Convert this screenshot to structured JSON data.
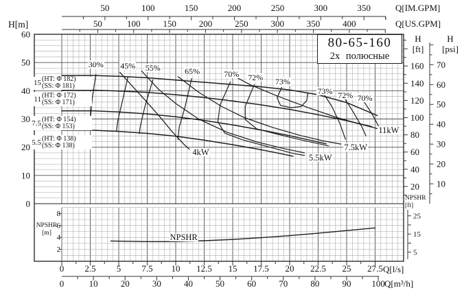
{
  "title_box": {
    "line1": "80-65-160",
    "line2": "2х полюсные"
  },
  "axes": {
    "top_im": {
      "unit": "Q[IM.GPM]",
      "ticks": [
        50,
        100,
        150,
        200,
        250,
        300,
        350
      ],
      "lps_per_unit": 0.0757682
    },
    "top_us": {
      "unit": "Q[US.GPM]",
      "ticks": [
        50,
        100,
        150,
        200,
        250,
        300,
        350,
        400
      ],
      "lps_per_unit": 0.0630902
    },
    "left_h_m": {
      "unit": "H[m]",
      "ticks": [
        0,
        10,
        20,
        30,
        40,
        50,
        60
      ]
    },
    "right_h_ft": {
      "title_line1": "H",
      "title_line2": "[ft]",
      "ticks": [
        20,
        40,
        60,
        80,
        100,
        120,
        140,
        160
      ],
      "m_per_unit": 0.3048
    },
    "right_h_psi": {
      "title_line1": "H",
      "title_line2": "[psi]",
      "ticks": [
        10,
        20,
        30,
        40,
        50,
        60,
        70
      ],
      "m_per_unit": 0.70325
    },
    "bottom_lps": {
      "unit": "Q[l/s]",
      "ticks": [
        0,
        2.5,
        5,
        7.5,
        10,
        12.5,
        15,
        17.5,
        20,
        22.5,
        25,
        27.5
      ]
    },
    "bottom_m3h": {
      "unit": "Q[m³/h]",
      "ticks": [
        0,
        10,
        20,
        30,
        40,
        50,
        60,
        70,
        80,
        90,
        100
      ],
      "lps_per_unit": 0.2777778
    },
    "npshr_left": {
      "title_line1": "NPSHR",
      "title_line2": "[m]",
      "ticks": [
        2,
        4,
        6,
        8
      ]
    },
    "npshr_right": {
      "title_line1": "NPSHR",
      "title_line2": "[ft]",
      "ticks": [
        5,
        15,
        25
      ],
      "m_per_unit": 0.3048
    }
  },
  "chart_data": {
    "type": "line",
    "xlabel": "Q [l/s]",
    "ylabel": "H [m]",
    "x_range_lps": [
      0,
      30
    ],
    "y_range_m": [
      0,
      60
    ],
    "npshr_range_m": [
      0,
      9
    ],
    "grid": "on",
    "head_curves": [
      {
        "label": "15",
        "ht": "(HT: Φ 182)",
        "ss": "(SS: Φ 181)",
        "points": [
          [
            0,
            45.4
          ],
          [
            2.8,
            45.4
          ],
          [
            5,
            45.1
          ],
          [
            7.5,
            44.6
          ],
          [
            10,
            43.8
          ],
          [
            12.5,
            43.0
          ],
          [
            15,
            42.2
          ],
          [
            17.5,
            41.4
          ],
          [
            20,
            40.3
          ],
          [
            22.5,
            38.6
          ],
          [
            25,
            35.8
          ],
          [
            27.7,
            31.2
          ]
        ]
      },
      {
        "label": "11",
        "ht": "(HT: Φ 172)",
        "ss": "(SS: Φ 171)",
        "points": [
          [
            0,
            40.2
          ],
          [
            2.8,
            40.2
          ],
          [
            5,
            39.9
          ],
          [
            7.5,
            39.4
          ],
          [
            10,
            38.6
          ],
          [
            12.5,
            37.6
          ],
          [
            15,
            36.4
          ],
          [
            17.5,
            35.0
          ],
          [
            20,
            33.4
          ],
          [
            22.5,
            31.5
          ],
          [
            25,
            29.4
          ],
          [
            27.2,
            27.3
          ]
        ]
      },
      {
        "label": "7.5",
        "ht": "(HT: Φ 154)",
        "ss": "(SS: Φ 153)",
        "points": [
          [
            0,
            32.9
          ],
          [
            2.8,
            32.9
          ],
          [
            5,
            32.5
          ],
          [
            7.5,
            31.8
          ],
          [
            10,
            30.8
          ],
          [
            12.5,
            29.5
          ],
          [
            15,
            27.9
          ],
          [
            17.5,
            26.1
          ],
          [
            20,
            24.1
          ],
          [
            22,
            22.3
          ],
          [
            23.2,
            21.2
          ]
        ]
      },
      {
        "label": "5.5",
        "ht": "(HT: Φ 138)",
        "ss": "(SS: Φ 138)",
        "points": [
          [
            0,
            26.0
          ],
          [
            2.8,
            26.0
          ],
          [
            5,
            25.6
          ],
          [
            7.5,
            24.9
          ],
          [
            10,
            23.9
          ],
          [
            12.5,
            22.5
          ],
          [
            15,
            20.9
          ],
          [
            17.5,
            19.1
          ],
          [
            19,
            17.9
          ],
          [
            20.3,
            16.8
          ]
        ]
      }
    ],
    "power_curves": [
      {
        "label": "4kW",
        "points": [
          [
            5.1,
            46.5
          ],
          [
            6.2,
            41.6
          ],
          [
            7.4,
            36.3
          ],
          [
            8.6,
            30.8
          ],
          [
            9.6,
            25.9
          ],
          [
            10.7,
            21.1
          ],
          [
            11.2,
            19.3
          ]
        ],
        "label_pos": [
          12.2,
          18.2
        ]
      },
      {
        "label": "5.5kW",
        "points": [
          [
            7.0,
            47.0
          ],
          [
            8.5,
            40.5
          ],
          [
            10,
            35.5
          ],
          [
            12,
            30.0
          ],
          [
            14.5,
            25.3
          ],
          [
            17,
            22.0
          ],
          [
            19.5,
            19.5
          ],
          [
            21.3,
            18.0
          ]
        ],
        "label_pos": [
          22.7,
          16.3
        ]
      },
      {
        "label": "7.5kW",
        "points": [
          [
            10.2,
            45.0
          ],
          [
            12,
            39.5
          ],
          [
            14,
            34.5
          ],
          [
            16,
            30.5
          ],
          [
            18.5,
            27.0
          ],
          [
            21,
            24.1
          ],
          [
            23,
            22.2
          ],
          [
            24.5,
            21.1
          ]
        ],
        "label_pos": [
          25.8,
          19.9
        ]
      },
      {
        "label": "11kW",
        "points": [
          [
            14.3,
            47.0
          ],
          [
            16.5,
            42.2
          ],
          [
            19,
            38.0
          ],
          [
            21.5,
            34.2
          ],
          [
            24,
            30.7
          ],
          [
            26,
            28.4
          ],
          [
            27.7,
            26.6
          ]
        ],
        "label_pos": [
          28.7,
          26.0
        ]
      }
    ],
    "efficiency_curves": [
      {
        "label": "30%",
        "points": [
          [
            3.0,
            45.8
          ],
          [
            2.7,
            38
          ],
          [
            2.5,
            30
          ],
          [
            2.4,
            26.2
          ]
        ],
        "label_pos": [
          3.0,
          49.4
        ]
      },
      {
        "label": "45%",
        "points": [
          [
            5.8,
            44.8
          ],
          [
            5.3,
            36
          ],
          [
            4.9,
            29
          ],
          [
            4.8,
            25.7
          ]
        ],
        "label_pos": [
          5.8,
          48.9
        ]
      },
      {
        "label": "55%",
        "points": [
          [
            8.0,
            43.9
          ],
          [
            7.3,
            34.5
          ],
          [
            6.9,
            27.5
          ],
          [
            6.8,
            24.8
          ]
        ],
        "label_pos": [
          8.0,
          48.2
        ]
      },
      {
        "label": "65%",
        "points": [
          [
            11.4,
            44.3
          ],
          [
            10.8,
            34
          ],
          [
            10.3,
            27
          ],
          [
            10.2,
            22.7
          ]
        ],
        "label_pos": [
          11.45,
          47.0
        ]
      },
      {
        "label": "70%",
        "points": [
          [
            14.8,
            43.2
          ],
          [
            13.9,
            35
          ],
          [
            13.7,
            29
          ],
          [
            14.3,
            25
          ],
          [
            15.8,
            22.7
          ],
          [
            18,
            20.3
          ],
          [
            20.3,
            17.8
          ],
          [
            21.3,
            17.1
          ]
        ],
        "label_pos": [
          14.9,
          45.8
        ]
      },
      {
        "label": "72%",
        "points": [
          [
            16.9,
            42.2
          ],
          [
            16.1,
            34.5
          ],
          [
            16.1,
            29.8
          ],
          [
            17.1,
            26.5
          ],
          [
            19,
            24.5
          ],
          [
            21.2,
            22.4
          ],
          [
            23.4,
            20.5
          ]
        ],
        "label_pos": [
          17.0,
          44.6
        ]
      },
      {
        "label": "73%",
        "points": [
          [
            19.3,
            41.2
          ],
          [
            18.9,
            37.5
          ],
          [
            19.2,
            34.8
          ],
          [
            20.1,
            34.0
          ],
          [
            21.0,
            34.4
          ],
          [
            21.5,
            36.5
          ],
          [
            21.6,
            39.2
          ]
        ],
        "label_pos": [
          19.4,
          43.3
        ]
      },
      {
        "label": "73%",
        "points": [
          [
            23.0,
            38.8
          ],
          [
            23.7,
            34.5
          ],
          [
            24.4,
            28.5
          ],
          [
            24.9,
            22.8
          ]
        ],
        "label_pos": [
          23.1,
          39.9
        ]
      },
      {
        "label": "72%",
        "points": [
          [
            24.8,
            37.4
          ],
          [
            25.5,
            33.0
          ],
          [
            26.3,
            27.5
          ],
          [
            26.7,
            24.0
          ]
        ],
        "label_pos": [
          24.9,
          38.5
        ]
      },
      {
        "label": "70%",
        "points": [
          [
            26.5,
            36.3
          ],
          [
            27.2,
            32.0
          ],
          [
            27.8,
            27.5
          ]
        ],
        "label_pos": [
          26.6,
          37.3
        ]
      }
    ],
    "npshr_curve": {
      "label": "NPSHR",
      "points": [
        [
          4.3,
          3.4
        ],
        [
          7.5,
          3.3
        ],
        [
          10,
          3.3
        ],
        [
          12.5,
          3.45
        ],
        [
          15,
          3.65
        ],
        [
          17.5,
          3.95
        ],
        [
          20,
          4.3
        ],
        [
          22.5,
          4.7
        ],
        [
          25,
          5.15
        ],
        [
          27.5,
          5.6
        ]
      ],
      "label_pos": [
        10.7,
        4.05
      ]
    }
  }
}
